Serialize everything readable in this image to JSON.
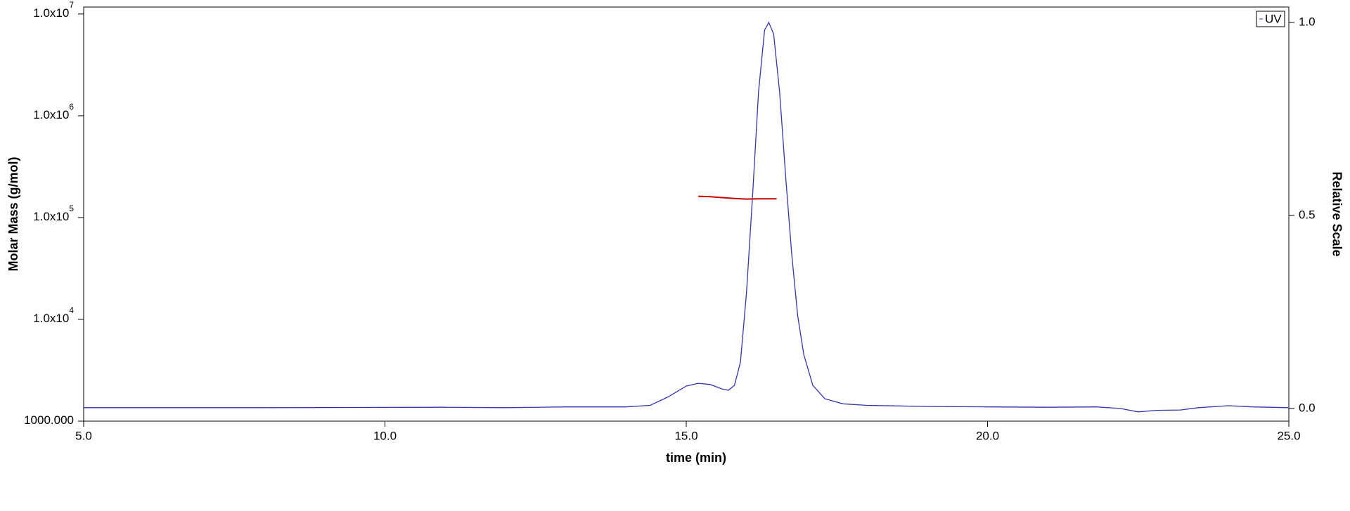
{
  "chart_data": {
    "type": "line",
    "xlabel": "time (min)",
    "ylabel": "Molar Mass (g/mol)",
    "y2label": "Relative Scale",
    "xlim": [
      5,
      25
    ],
    "xticks": [
      {
        "value": 5,
        "label": "5.0"
      },
      {
        "value": 10,
        "label": "10.0"
      },
      {
        "value": 15,
        "label": "15.0"
      },
      {
        "value": 20,
        "label": "20.0"
      },
      {
        "value": 25,
        "label": "25.0"
      }
    ],
    "ylim": [
      1000,
      11700000
    ],
    "ylog": true,
    "yticks": [
      {
        "value": 1000,
        "label": "1000.000"
      },
      {
        "value": 10000,
        "label": "1.0x10",
        "sup": "4"
      },
      {
        "value": 100000,
        "label": "1.0x10",
        "sup": "5"
      },
      {
        "value": 1000000,
        "label": "1.0x10",
        "sup": "6"
      },
      {
        "value": 10000000,
        "label": "1.0x10",
        "sup": "7"
      }
    ],
    "y2lim": [
      -0.033,
      1.04
    ],
    "y2ticks": [
      {
        "value": 0,
        "label": "0.0"
      },
      {
        "value": 0.5,
        "label": "0.5"
      },
      {
        "value": 1,
        "label": "1.0"
      }
    ],
    "legend": "upper right",
    "series": [
      {
        "name": "UV",
        "color": "#3434b0",
        "axis": "y2",
        "x": [
          5.0,
          8.0,
          11.0,
          12.0,
          13.0,
          14.0,
          14.4,
          14.7,
          15.0,
          15.2,
          15.4,
          15.6,
          15.7,
          15.8,
          15.9,
          16.0,
          16.1,
          16.2,
          16.3,
          16.37,
          16.45,
          16.55,
          16.65,
          16.75,
          16.85,
          16.95,
          17.1,
          17.3,
          17.6,
          18.0,
          19.0,
          20.0,
          21.0,
          21.8,
          22.2,
          22.5,
          22.8,
          23.2,
          23.5,
          24.0,
          24.4,
          25.0
        ],
        "values": [
          0.002,
          0.002,
          0.003,
          0.002,
          0.004,
          0.004,
          0.008,
          0.03,
          0.058,
          0.065,
          0.062,
          0.05,
          0.047,
          0.06,
          0.12,
          0.3,
          0.55,
          0.82,
          0.98,
          1.0,
          0.97,
          0.82,
          0.6,
          0.4,
          0.24,
          0.14,
          0.06,
          0.025,
          0.012,
          0.008,
          0.005,
          0.004,
          0.003,
          0.004,
          0.0,
          -0.009,
          -0.005,
          -0.004,
          0.002,
          0.007,
          0.004,
          0.002
        ]
      },
      {
        "color": "#cc0000",
        "x": [
          15.2,
          15.4,
          15.6,
          15.8,
          16.0,
          16.2,
          16.5
        ],
        "values": [
          162000,
          160000,
          157000,
          154000,
          152000,
          153000,
          153000
        ]
      }
    ]
  }
}
